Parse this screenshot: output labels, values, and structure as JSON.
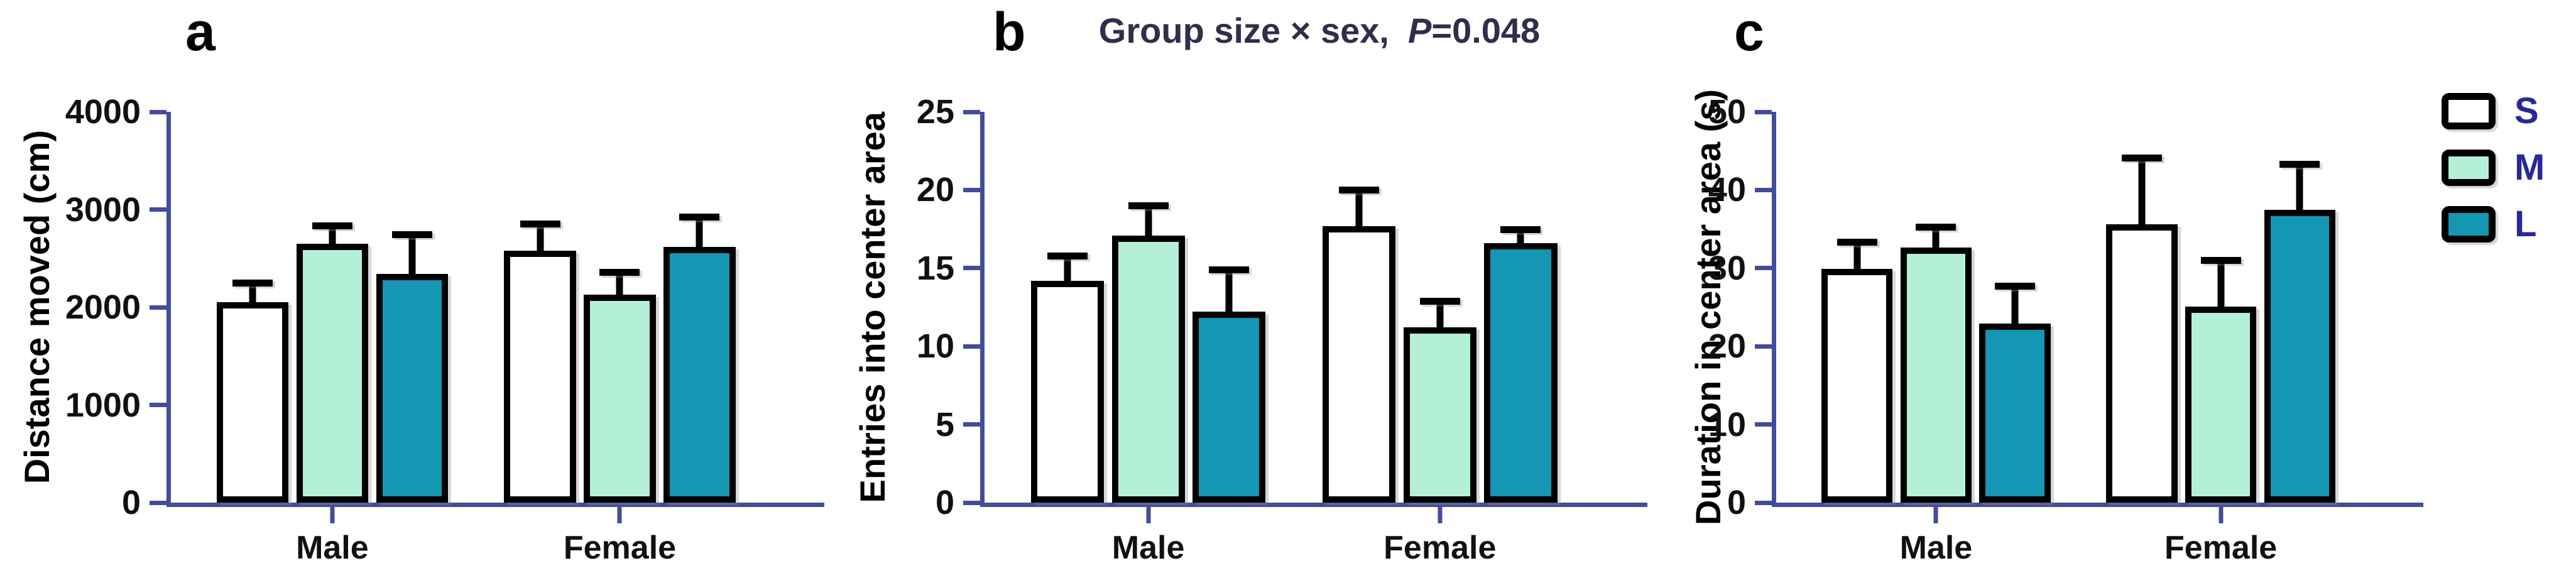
{
  "figure": {
    "background": "#ffffff",
    "colors": {
      "axis": "#414c9c",
      "bar_outline": "#000000",
      "text": "#111111",
      "panel_title": "#2e2e4d",
      "legend_text": "#28289a"
    }
  },
  "legend": {
    "position": "right",
    "entries": [
      {
        "label": "S",
        "color": "#ffffff"
      },
      {
        "label": "M",
        "color": "#b4f0d8"
      },
      {
        "label": "L",
        "color": "#1596b2"
      }
    ]
  },
  "chart_data": [
    {
      "panel_letter": "a",
      "type": "bar",
      "title_prefix": "",
      "title_p": "",
      "title_suffix": "",
      "xlabel": "",
      "ylabel": "Distance moved (cm)",
      "ylim": [
        0,
        4000
      ],
      "yticks": [
        0,
        1000,
        2000,
        3000,
        4000
      ],
      "categories": [
        "Male",
        "Female"
      ],
      "grid": false,
      "legend_entries": [
        "S",
        "M",
        "L"
      ],
      "series": [
        {
          "name": "S",
          "values": [
            2050,
            2580
          ],
          "errors_upper": [
            230,
            310
          ]
        },
        {
          "name": "M",
          "values": [
            2650,
            2130
          ],
          "errors_upper": [
            220,
            260
          ]
        },
        {
          "name": "L",
          "values": [
            2340,
            2620
          ],
          "errors_upper": [
            440,
            340
          ]
        }
      ]
    },
    {
      "panel_letter": "b",
      "type": "bar",
      "title_prefix": "Group size × sex,",
      "title_p": "P",
      "title_suffix": "=0.048",
      "xlabel": "",
      "ylabel": "Entries into center area",
      "ylim": [
        0,
        25
      ],
      "yticks": [
        0,
        5,
        10,
        15,
        20,
        25
      ],
      "categories": [
        "Male",
        "Female"
      ],
      "grid": false,
      "legend_entries": [
        "S",
        "M",
        "L"
      ],
      "series": [
        {
          "name": "S",
          "values": [
            14.2,
            17.7
          ],
          "errors_upper": [
            1.8,
            2.5
          ]
        },
        {
          "name": "M",
          "values": [
            17.1,
            11.2
          ],
          "errors_upper": [
            2.1,
            1.9
          ]
        },
        {
          "name": "L",
          "values": [
            12.2,
            16.6
          ],
          "errors_upper": [
            2.9,
            1.1
          ]
        }
      ]
    },
    {
      "panel_letter": "c",
      "type": "bar",
      "title_prefix": "",
      "title_p": "",
      "title_suffix": "",
      "xlabel": "",
      "ylabel": "Duration in center area (s)",
      "ylim": [
        0,
        50
      ],
      "yticks": [
        0,
        10,
        20,
        30,
        40,
        50
      ],
      "categories": [
        "Male",
        "Female"
      ],
      "grid": false,
      "legend_entries": [
        "S",
        "M",
        "L"
      ],
      "series": [
        {
          "name": "S",
          "values": [
            29.9,
            35.6
          ],
          "errors_upper": [
            3.9,
            8.9
          ]
        },
        {
          "name": "M",
          "values": [
            32.6,
            25.1
          ],
          "errors_upper": [
            3.1,
            6.3
          ]
        },
        {
          "name": "L",
          "values": [
            22.9,
            37.5
          ],
          "errors_upper": [
            5.2,
            6.2
          ]
        }
      ]
    }
  ]
}
